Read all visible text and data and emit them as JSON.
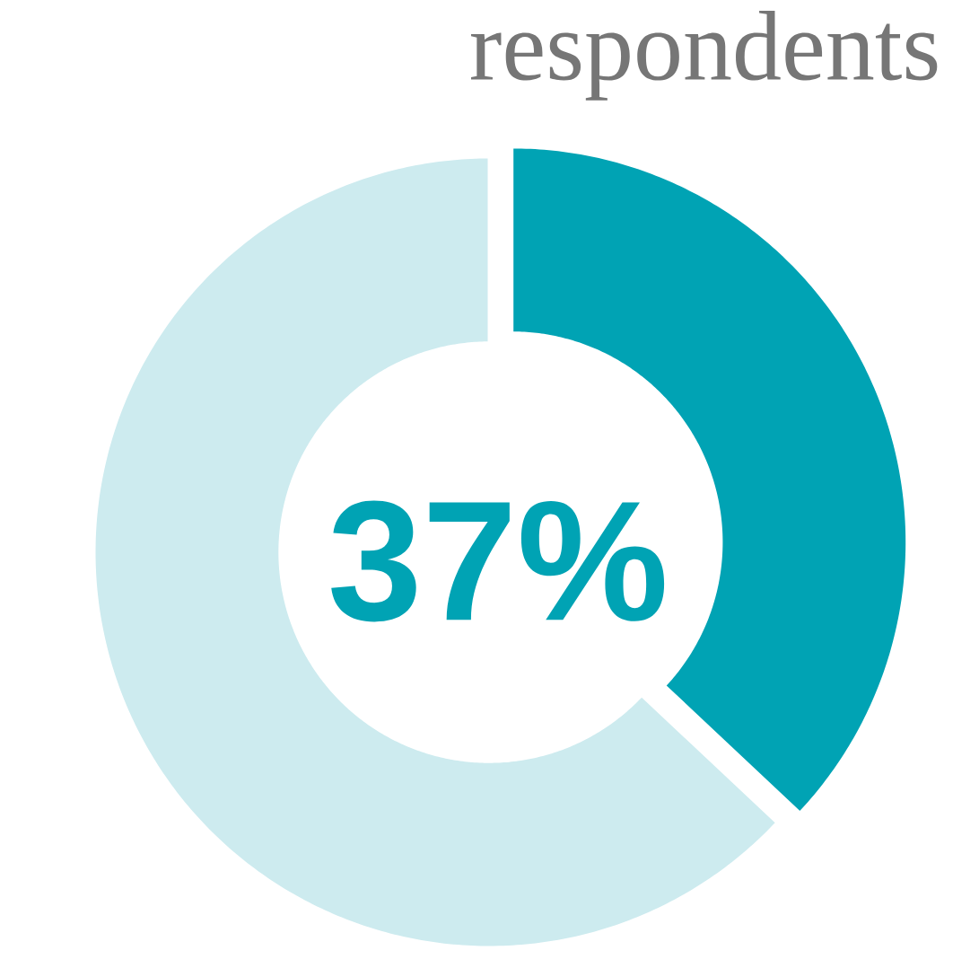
{
  "chart_data": {
    "type": "donut",
    "title": "respondents",
    "categories": [
      null,
      null
    ],
    "values": [
      37,
      63
    ],
    "colors": [
      "#00a3b4",
      "#cdebef"
    ],
    "value_labels": [
      "37%",
      null
    ]
  }
}
